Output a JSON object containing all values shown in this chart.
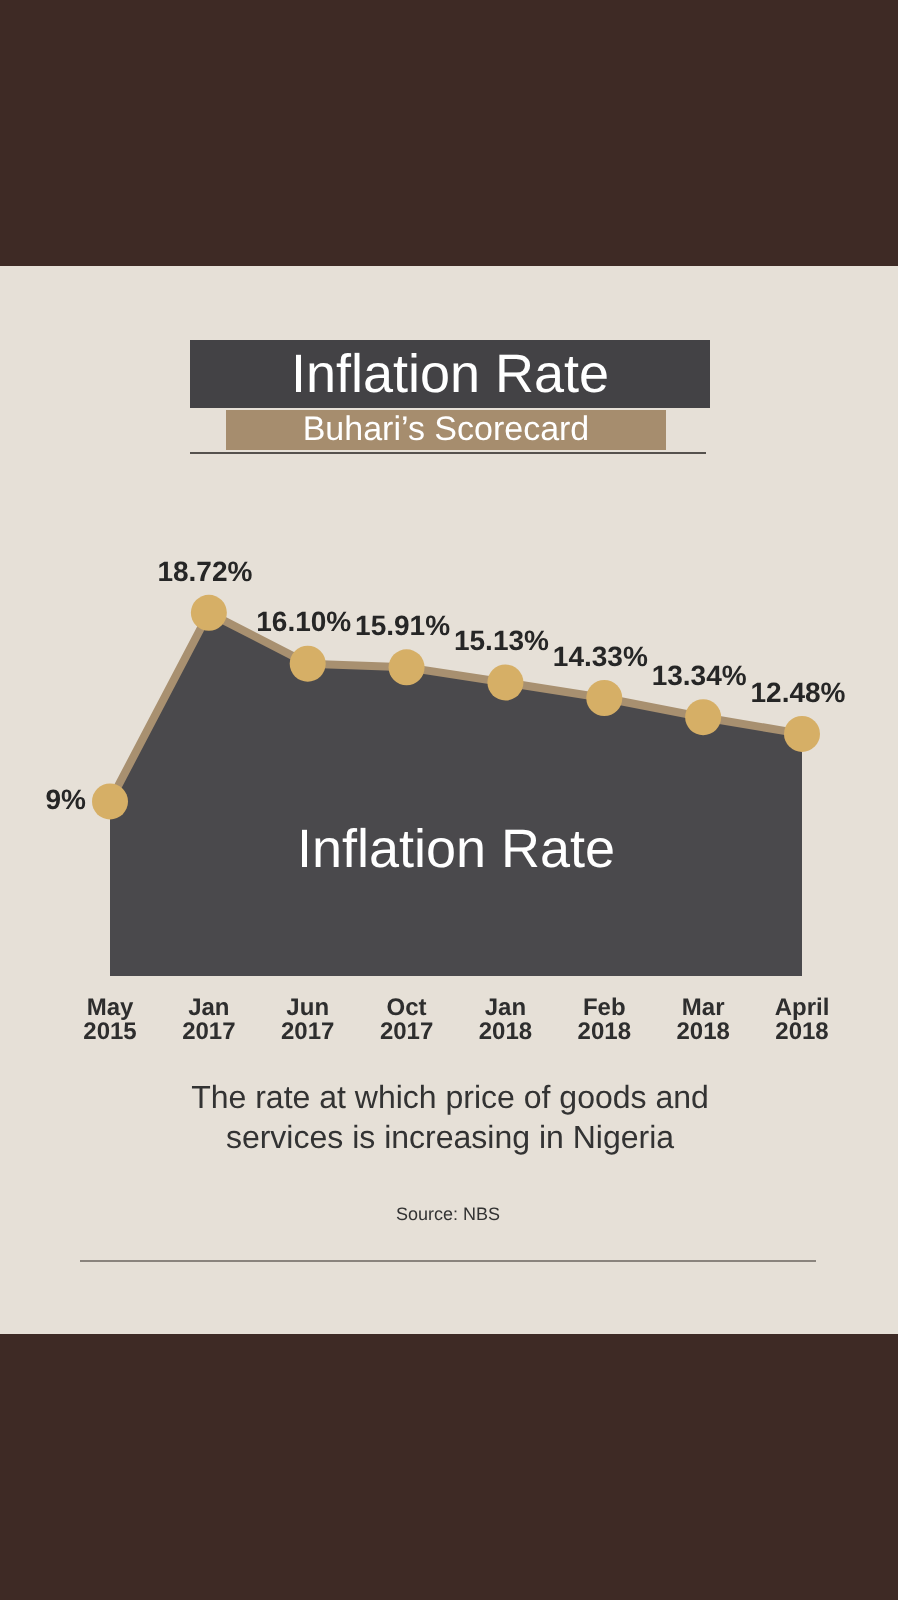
{
  "chart_data": {
    "type": "area",
    "title": "Inflation Rate",
    "subtitle": "Buhari’s Scorecard",
    "categories": [
      "May\n2015",
      "Jan\n2017",
      "Jun\n2017",
      "Oct\n2017",
      "Jan\n2018",
      "Feb\n2018",
      "Mar\n2018",
      "April\n2018"
    ],
    "values": [
      9,
      18.72,
      16.1,
      15.91,
      15.13,
      14.33,
      13.34,
      12.48
    ],
    "value_labels": [
      "9%",
      "18.72%",
      "16.10%",
      "15.91%",
      "15.13%",
      "14.33%",
      "13.34%",
      "12.48%"
    ],
    "color": "#4a494c",
    "marker": "circle",
    "tick_labels": "x",
    "grid": false,
    "legend": false,
    "annotations": [
      "Inflation Rate",
      "The rate at which price of goods and services is increasing in Nigeria",
      "Source: NBS"
    ]
  }
}
